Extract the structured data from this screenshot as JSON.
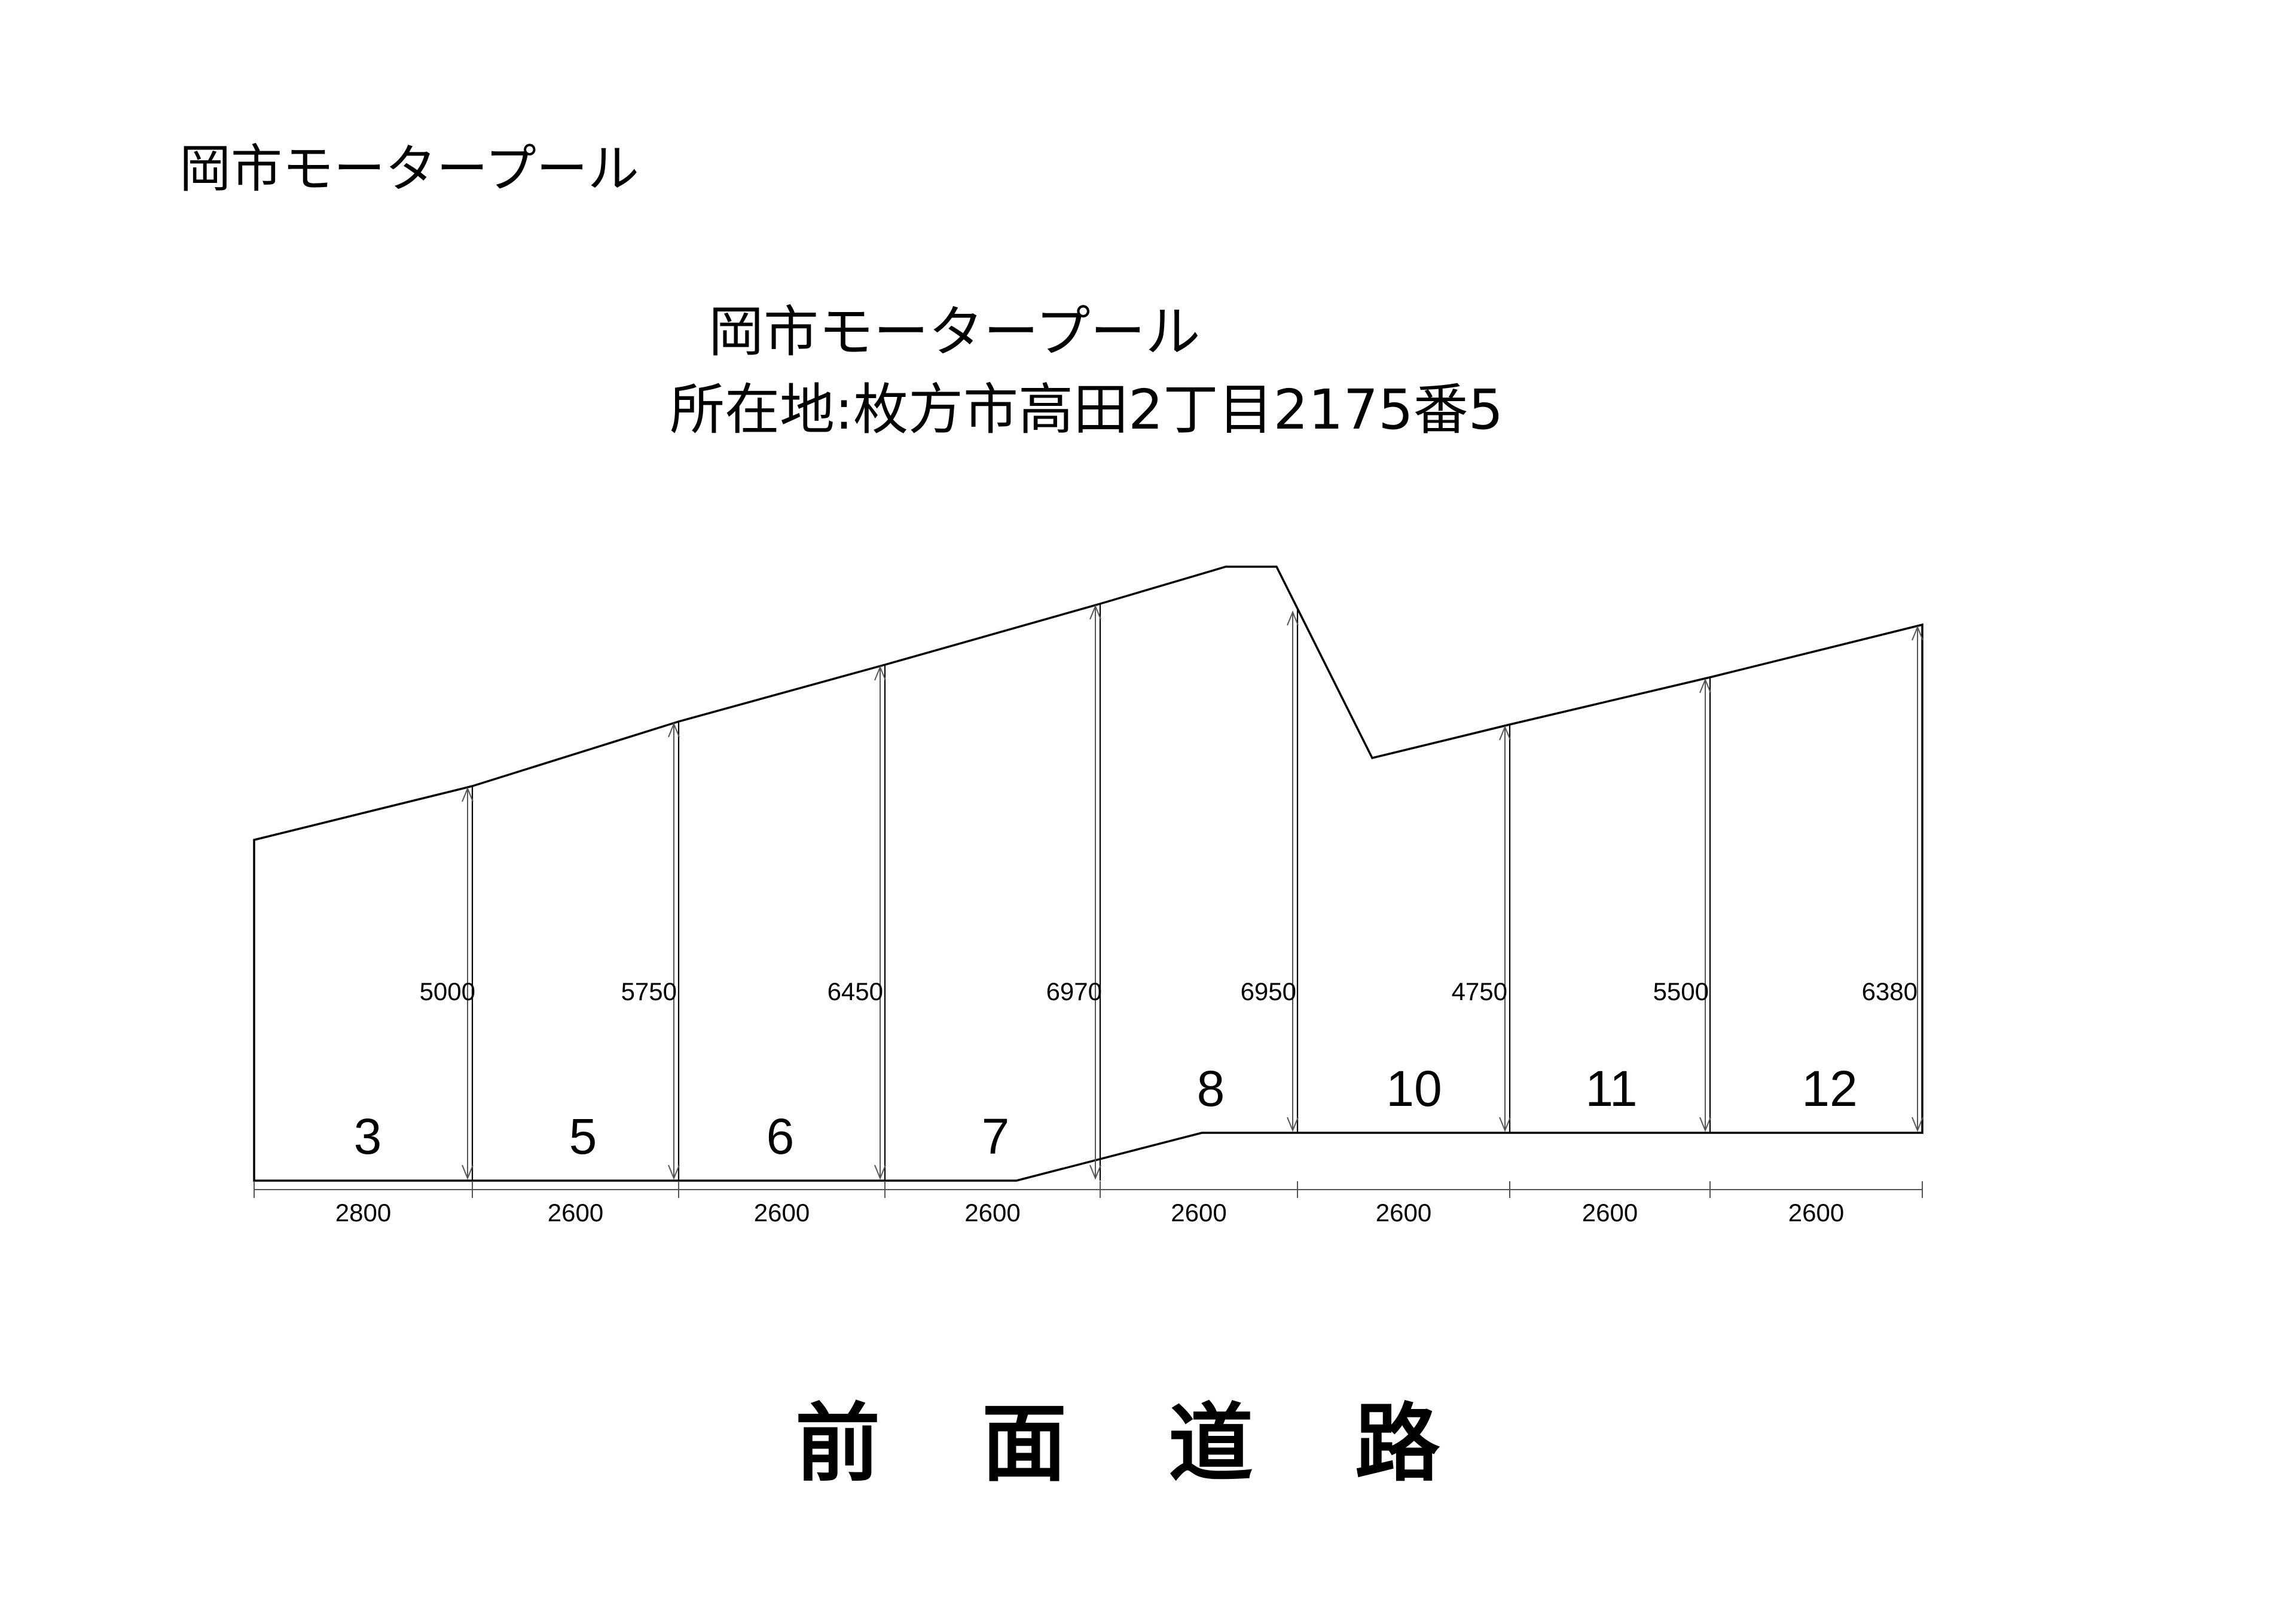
{
  "header": {
    "title": "岡市モータープール"
  },
  "plan": {
    "title": "岡市モータープール",
    "address": "所在地:枚方市高田2丁目2175番5",
    "road_label": "前面道路",
    "lots": [
      {
        "number": "3",
        "depth": "5000",
        "width": "2800"
      },
      {
        "number": "5",
        "depth": "5750",
        "width": "2600"
      },
      {
        "number": "6",
        "depth": "6450",
        "width": "2600"
      },
      {
        "number": "7",
        "depth": "6970",
        "width": "2600"
      },
      {
        "number": "8",
        "depth": "6950",
        "width": "2600"
      },
      {
        "number": "10",
        "depth": "4750",
        "width": "2600"
      },
      {
        "number": "11",
        "depth": "5500",
        "width": "2600"
      },
      {
        "number": "12",
        "depth": "6380",
        "width": "2600"
      }
    ]
  },
  "colors": {
    "line": "#000000",
    "dimension": "#555555",
    "background": "#ffffff"
  }
}
